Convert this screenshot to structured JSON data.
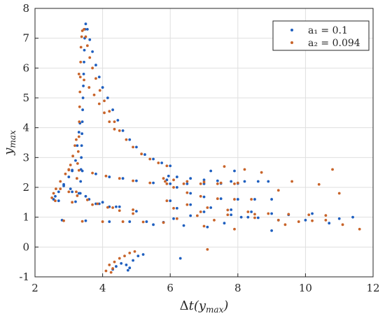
{
  "chart_data": {
    "type": "scatter",
    "title": "",
    "xlabel": "Δt(y_max)",
    "ylabel": "y_max",
    "xlim": [
      2,
      12
    ],
    "ylim": [
      -1,
      8
    ],
    "xticks": [
      2,
      4,
      6,
      8,
      10,
      12
    ],
    "yticks": [
      -1,
      0,
      1,
      2,
      3,
      4,
      5,
      6,
      7,
      8
    ],
    "grid": true,
    "legend_position": "top-right",
    "series": [
      {
        "name": "a₁ = 0.1",
        "color": "#1f5fbf",
        "points": [
          [
            3.34,
            1.8
          ],
          [
            3.35,
            2.2
          ],
          [
            3.36,
            2.6
          ],
          [
            3.37,
            3.0
          ],
          [
            3.38,
            3.4
          ],
          [
            3.39,
            3.8
          ],
          [
            3.4,
            4.2
          ],
          [
            3.41,
            4.6
          ],
          [
            3.42,
            5.0
          ],
          [
            3.43,
            5.4
          ],
          [
            3.44,
            5.8
          ],
          [
            3.45,
            6.2
          ],
          [
            3.46,
            6.6
          ],
          [
            3.47,
            7.0
          ],
          [
            3.48,
            7.3
          ],
          [
            3.5,
            7.48
          ],
          [
            3.55,
            7.3
          ],
          [
            3.62,
            6.95
          ],
          [
            3.7,
            6.55
          ],
          [
            3.8,
            6.1
          ],
          [
            3.9,
            5.7
          ],
          [
            4.0,
            5.35
          ],
          [
            4.15,
            5.0
          ],
          [
            4.3,
            4.6
          ],
          [
            4.45,
            4.25
          ],
          [
            4.6,
            3.9
          ],
          [
            4.8,
            3.6
          ],
          [
            5.0,
            3.35
          ],
          [
            5.25,
            3.1
          ],
          [
            5.5,
            2.95
          ],
          [
            5.75,
            2.82
          ],
          [
            6.0,
            2.72
          ],
          [
            2.55,
            1.6
          ],
          [
            2.6,
            1.7
          ],
          [
            2.7,
            1.85
          ],
          [
            2.85,
            2.1
          ],
          [
            3.0,
            2.35
          ],
          [
            3.1,
            2.55
          ],
          [
            3.2,
            2.9
          ],
          [
            3.25,
            3.4
          ],
          [
            3.3,
            3.85
          ],
          [
            3.33,
            4.15
          ],
          [
            3.1,
            2.58
          ],
          [
            3.4,
            2.55
          ],
          [
            3.8,
            2.45
          ],
          [
            4.2,
            2.35
          ],
          [
            4.6,
            2.3
          ],
          [
            5.0,
            2.22
          ],
          [
            5.5,
            2.15
          ],
          [
            6.0,
            2.12
          ],
          [
            6.5,
            2.12
          ],
          [
            7.0,
            2.12
          ],
          [
            7.5,
            2.13
          ],
          [
            8.0,
            2.13
          ],
          [
            5.95,
            2.38
          ],
          [
            6.2,
            2.35
          ],
          [
            6.6,
            2.3
          ],
          [
            7.0,
            2.25
          ],
          [
            7.4,
            2.22
          ],
          [
            7.8,
            2.2
          ],
          [
            8.2,
            2.2
          ],
          [
            8.6,
            2.2
          ],
          [
            8.9,
            2.2
          ],
          [
            2.85,
            2.05
          ],
          [
            3.05,
            1.95
          ],
          [
            3.3,
            1.8
          ],
          [
            3.6,
            1.6
          ],
          [
            3.9,
            1.45
          ],
          [
            4.2,
            1.35
          ],
          [
            3.1,
            1.85
          ],
          [
            3.5,
            1.7
          ],
          [
            4.0,
            1.5
          ],
          [
            4.5,
            1.35
          ],
          [
            5.0,
            1.2
          ],
          [
            2.7,
            1.55
          ],
          [
            3.2,
            1.52
          ],
          [
            3.8,
            1.45
          ],
          [
            4.4,
            1.35
          ],
          [
            5.9,
            2.25
          ],
          [
            6.2,
            2.0
          ],
          [
            6.6,
            1.8
          ],
          [
            7.0,
            1.68
          ],
          [
            7.5,
            1.62
          ],
          [
            8.0,
            1.6
          ],
          [
            8.5,
            1.6
          ],
          [
            9.0,
            1.6
          ],
          [
            6.0,
            1.55
          ],
          [
            6.6,
            1.42
          ],
          [
            7.2,
            1.32
          ],
          [
            7.8,
            1.25
          ],
          [
            8.4,
            1.18
          ],
          [
            9.0,
            1.12
          ],
          [
            9.5,
            1.08
          ],
          [
            6.2,
            1.3
          ],
          [
            7.0,
            1.18
          ],
          [
            7.8,
            1.08
          ],
          [
            8.6,
            0.98
          ],
          [
            9.2,
            0.9
          ],
          [
            2.8,
            0.9
          ],
          [
            3.5,
            0.88
          ],
          [
            4.2,
            0.85
          ],
          [
            4.8,
            0.85
          ],
          [
            5.3,
            0.85
          ],
          [
            5.8,
            0.83
          ],
          [
            6.4,
            0.72
          ],
          [
            7.1,
            0.67
          ],
          [
            7.6,
            0.8
          ],
          [
            8.1,
            1.0
          ],
          [
            9.0,
            0.55
          ],
          [
            10.0,
            0.9
          ],
          [
            10.7,
            0.8
          ],
          [
            11.0,
            0.95
          ],
          [
            11.4,
            1.0
          ],
          [
            10.2,
            1.12
          ],
          [
            4.3,
            -0.75
          ],
          [
            4.4,
            -0.65
          ],
          [
            4.55,
            -0.55
          ],
          [
            4.7,
            -0.6
          ],
          [
            4.8,
            -0.7
          ],
          [
            4.9,
            -0.45
          ],
          [
            5.05,
            -0.3
          ],
          [
            5.2,
            -0.25
          ],
          [
            6.3,
            -0.38
          ],
          [
            4.75,
            -0.78
          ],
          [
            7.2,
            2.55
          ],
          [
            7.9,
            2.55
          ],
          [
            8.3,
            1.0
          ],
          [
            5.5,
            0.75
          ],
          [
            6.1,
            0.95
          ],
          [
            6.6,
            1.05
          ]
        ]
      },
      {
        "name": "a₂ = 0.094",
        "color": "#c8642a",
        "points": [
          [
            3.22,
            1.85
          ],
          [
            3.24,
            2.3
          ],
          [
            3.26,
            2.8
          ],
          [
            3.28,
            3.2
          ],
          [
            3.3,
            3.7
          ],
          [
            3.31,
            4.2
          ],
          [
            3.32,
            4.7
          ],
          [
            3.33,
            5.2
          ],
          [
            3.34,
            5.7
          ],
          [
            3.35,
            6.2
          ],
          [
            3.36,
            6.7
          ],
          [
            3.38,
            7.05
          ],
          [
            3.4,
            7.25
          ],
          [
            3.45,
            7.3
          ],
          [
            3.5,
            7.05
          ],
          [
            3.55,
            6.75
          ],
          [
            3.62,
            6.35
          ],
          [
            3.7,
            6.0
          ],
          [
            3.8,
            5.65
          ],
          [
            3.92,
            5.25
          ],
          [
            4.05,
            4.9
          ],
          [
            4.2,
            4.55
          ],
          [
            4.35,
            4.2
          ],
          [
            4.5,
            3.9
          ],
          [
            4.7,
            3.6
          ],
          [
            4.9,
            3.35
          ],
          [
            5.15,
            3.12
          ],
          [
            5.4,
            2.95
          ],
          [
            5.65,
            2.82
          ],
          [
            5.9,
            2.72
          ],
          [
            3.3,
            5.8
          ],
          [
            3.45,
            5.6
          ],
          [
            3.6,
            5.35
          ],
          [
            3.75,
            5.1
          ],
          [
            3.9,
            4.8
          ],
          [
            4.05,
            4.5
          ],
          [
            4.2,
            4.2
          ],
          [
            4.35,
            3.95
          ],
          [
            2.5,
            1.65
          ],
          [
            2.55,
            1.8
          ],
          [
            2.62,
            1.95
          ],
          [
            2.75,
            2.2
          ],
          [
            2.9,
            2.45
          ],
          [
            3.0,
            2.6
          ],
          [
            3.05,
            2.75
          ],
          [
            3.12,
            3.05
          ],
          [
            3.18,
            3.4
          ],
          [
            3.22,
            3.6
          ],
          [
            3.0,
            2.58
          ],
          [
            3.3,
            2.57
          ],
          [
            3.7,
            2.48
          ],
          [
            4.1,
            2.38
          ],
          [
            4.5,
            2.3
          ],
          [
            4.9,
            2.22
          ],
          [
            5.4,
            2.15
          ],
          [
            5.9,
            2.12
          ],
          [
            6.4,
            2.12
          ],
          [
            6.9,
            2.12
          ],
          [
            7.4,
            2.12
          ],
          [
            7.9,
            2.12
          ],
          [
            5.8,
            2.3
          ],
          [
            6.1,
            2.25
          ],
          [
            6.5,
            2.2
          ],
          [
            7.0,
            2.18
          ],
          [
            7.5,
            2.15
          ],
          [
            8.0,
            2.15
          ],
          [
            2.75,
            1.95
          ],
          [
            3.0,
            1.85
          ],
          [
            3.25,
            1.72
          ],
          [
            3.55,
            1.58
          ],
          [
            3.85,
            1.45
          ],
          [
            4.15,
            1.33
          ],
          [
            4.5,
            1.22
          ],
          [
            4.9,
            1.12
          ],
          [
            2.6,
            1.55
          ],
          [
            3.1,
            1.5
          ],
          [
            3.7,
            1.42
          ],
          [
            4.3,
            1.32
          ],
          [
            4.9,
            1.25
          ],
          [
            5.85,
            2.2
          ],
          [
            6.1,
            2.0
          ],
          [
            6.5,
            1.82
          ],
          [
            6.9,
            1.7
          ],
          [
            7.4,
            1.62
          ],
          [
            7.9,
            1.6
          ],
          [
            8.4,
            1.6
          ],
          [
            5.9,
            1.55
          ],
          [
            6.5,
            1.42
          ],
          [
            7.1,
            1.32
          ],
          [
            7.7,
            1.24
          ],
          [
            8.3,
            1.18
          ],
          [
            8.9,
            1.12
          ],
          [
            9.5,
            1.1
          ],
          [
            10.1,
            1.08
          ],
          [
            10.6,
            1.06
          ],
          [
            6.1,
            1.3
          ],
          [
            6.9,
            1.18
          ],
          [
            7.7,
            1.08
          ],
          [
            8.5,
            0.98
          ],
          [
            9.2,
            0.9
          ],
          [
            9.8,
            0.85
          ],
          [
            2.85,
            0.88
          ],
          [
            3.4,
            0.86
          ],
          [
            4.0,
            0.85
          ],
          [
            4.6,
            0.85
          ],
          [
            5.2,
            0.84
          ],
          [
            5.8,
            0.82
          ],
          [
            6.2,
            0.95
          ],
          [
            6.8,
            1.05
          ],
          [
            7.3,
            0.9
          ],
          [
            7.0,
            0.7
          ],
          [
            7.9,
            0.6
          ],
          [
            8.5,
            1.1
          ],
          [
            9.4,
            0.75
          ],
          [
            10.2,
            0.88
          ],
          [
            10.6,
            0.9
          ],
          [
            11.1,
            0.75
          ],
          [
            11.6,
            0.6
          ],
          [
            11.0,
            1.8
          ],
          [
            10.8,
            2.6
          ],
          [
            10.4,
            2.1
          ],
          [
            8.7,
            2.5
          ],
          [
            8.2,
            2.6
          ],
          [
            7.6,
            2.7
          ],
          [
            9.6,
            2.2
          ],
          [
            9.2,
            1.9
          ],
          [
            4.3,
            -0.72
          ],
          [
            4.2,
            -0.6
          ],
          [
            4.35,
            -0.5
          ],
          [
            4.5,
            -0.38
          ],
          [
            4.65,
            -0.3
          ],
          [
            4.8,
            -0.2
          ],
          [
            4.95,
            -0.15
          ],
          [
            4.1,
            -0.8
          ],
          [
            4.25,
            -0.85
          ],
          [
            7.1,
            -0.08
          ]
        ]
      }
    ]
  },
  "legend": {
    "items": [
      {
        "label": "a₁ = 0.1",
        "color": "#1f5fbf"
      },
      {
        "label": "a₂ = 0.094",
        "color": "#c8642a"
      }
    ]
  }
}
